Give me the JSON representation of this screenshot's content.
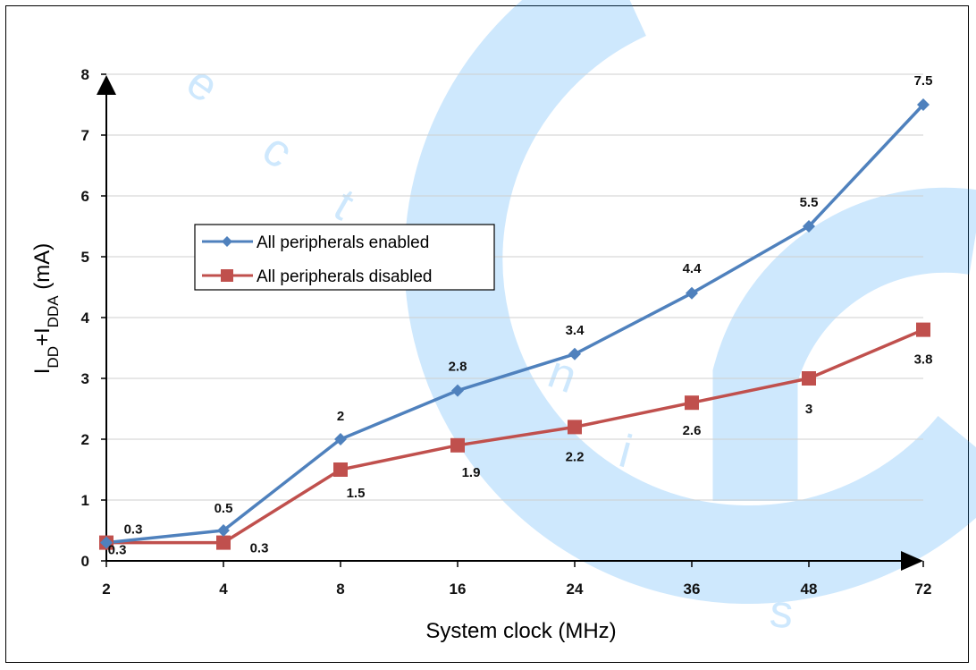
{
  "chart_data": {
    "type": "line",
    "categories": [
      "2",
      "4",
      "8",
      "16",
      "24",
      "36",
      "48",
      "72"
    ],
    "series": [
      {
        "name": "All peripherals enabled",
        "values": [
          0.3,
          0.5,
          2,
          2.8,
          3.4,
          4.4,
          5.5,
          7.5
        ],
        "labels": [
          "0.3",
          "0.5",
          "2",
          "2.8",
          "3.4",
          "4.4",
          "5.5",
          "7.5"
        ],
        "color": "#4F81BD",
        "marker": "diamond"
      },
      {
        "name": "All peripherals disabled",
        "values": [
          0.3,
          0.3,
          1.5,
          1.9,
          2.2,
          2.6,
          3,
          3.8
        ],
        "labels": [
          "0.3",
          "0.3",
          "1.5",
          "1.9",
          "2.2",
          "2.6",
          "3",
          "3.8"
        ],
        "color": "#C0504D",
        "marker": "square"
      }
    ],
    "ylim": [
      0,
      8
    ],
    "yticks": [
      "0",
      "1",
      "2",
      "3",
      "4",
      "5",
      "6",
      "7",
      "8"
    ],
    "xlabel": "System clock (MHz)",
    "ylabel": {
      "main1": "I",
      "sub1": "DD",
      "plus": "+I",
      "sub2": "DDA",
      "unit": " (mA)"
    },
    "grid": true,
    "legend_position": "upper-left",
    "watermark_color": "#2196F3"
  }
}
